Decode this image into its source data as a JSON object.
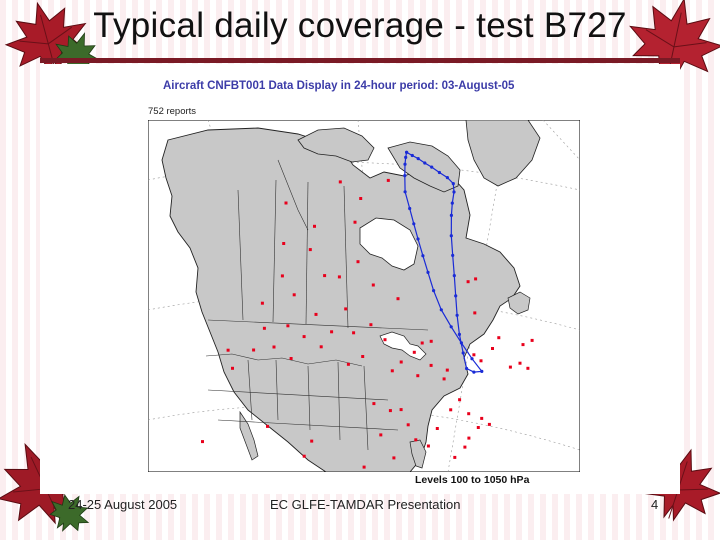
{
  "slide": {
    "title": "Typical daily coverage - test B727",
    "footer": {
      "date": "24-25 August 2005",
      "presentation": "EC GLFE-TAMDAR Presentation",
      "page_number": "4"
    }
  },
  "map": {
    "heading": "Aircraft  CNFBT001  Data Display in 24-hour period: 03-August-05",
    "report_count": "752 reports",
    "levels": "Levels 100 to 1050 hPa",
    "colors": {
      "land": "#c8c8c8",
      "water": "#ffffff",
      "boundary": "#222222",
      "report_marker": "#e8001c",
      "track": "#1a2bd6"
    },
    "flight_track": [
      [
        -74,
        76
      ],
      [
        -72,
        75.4
      ],
      [
        -70,
        74.8
      ],
      [
        -68,
        74.0
      ],
      [
        -66,
        73.2
      ],
      [
        -64,
        72.2
      ],
      [
        -62,
        71.2
      ],
      [
        -61,
        70.2
      ],
      [
        -62,
        69.2
      ],
      [
        -64,
        68.0
      ],
      [
        -65.8,
        66.6
      ],
      [
        -68,
        64.2
      ],
      [
        -69.5,
        61.8
      ],
      [
        -70.8,
        59.3
      ],
      [
        -72.0,
        56.8
      ],
      [
        -73.0,
        54.4
      ],
      [
        -73.7,
        52.0
      ],
      [
        -74.0,
        49.6
      ],
      [
        -74.2,
        47.6
      ],
      [
        -73.0,
        46.9
      ],
      [
        -71.5,
        46.7
      ],
      [
        -72.6,
        48.6
      ],
      [
        -73.8,
        50.9
      ],
      [
        -75.0,
        53.2
      ],
      [
        -76.2,
        55.6
      ],
      [
        -76.9,
        58.2
      ],
      [
        -77.2,
        60.6
      ],
      [
        -77.5,
        62.8
      ],
      [
        -77.8,
        65.0
      ],
      [
        -78,
        67.0
      ],
      [
        -78.2,
        69.0
      ],
      [
        -78.5,
        71.2
      ],
      [
        -77.2,
        73.2
      ],
      [
        -76,
        74.6
      ],
      [
        -75,
        75.4
      ],
      [
        -74,
        76
      ]
    ],
    "report_points": [
      [
        -84,
        73
      ],
      [
        -95,
        71
      ],
      [
        -103,
        73
      ],
      [
        -97,
        68
      ],
      [
        -110,
        67
      ],
      [
        -121,
        69
      ],
      [
        -118,
        64
      ],
      [
        -110,
        64
      ],
      [
        -105,
        61
      ],
      [
        -101,
        61
      ],
      [
        -96,
        63
      ],
      [
        -92,
        60
      ],
      [
        -112,
        58
      ],
      [
        -116,
        60
      ],
      [
        -119,
        56
      ],
      [
        -117,
        53
      ],
      [
        -112,
        54
      ],
      [
        -106,
        56
      ],
      [
        -102,
        54
      ],
      [
        -99,
        57
      ],
      [
        -93,
        55
      ],
      [
        -90,
        53
      ],
      [
        -86,
        58
      ],
      [
        -123,
        49
      ],
      [
        -121,
        47
      ],
      [
        -118,
        50
      ],
      [
        -114,
        51
      ],
      [
        -110,
        50
      ],
      [
        -108,
        53
      ],
      [
        -104,
        52
      ],
      [
        -98,
        50
      ],
      [
        -97,
        54
      ],
      [
        -95,
        51
      ],
      [
        -89,
        49
      ],
      [
        -87,
        50
      ],
      [
        -84,
        48
      ],
      [
        -81,
        49
      ],
      [
        -79,
        47
      ],
      [
        -80,
        52
      ],
      [
        -82,
        52
      ],
      [
        -84,
        51
      ],
      [
        -78,
        48
      ],
      [
        -72,
        49
      ],
      [
        -68,
        49
      ],
      [
        -66,
        46
      ],
      [
        -64,
        46
      ],
      [
        -63,
        45
      ],
      [
        -62,
        48
      ],
      [
        -60,
        48
      ],
      [
        -66,
        50
      ],
      [
        -71,
        48
      ],
      [
        -69,
        54
      ],
      [
        -66,
        58
      ],
      [
        -68,
        58
      ],
      [
        -77,
        44
      ],
      [
        -79,
        43
      ],
      [
        -76,
        42
      ],
      [
        -74,
        41
      ],
      [
        -73,
        40
      ],
      [
        -75,
        40
      ],
      [
        -77,
        39
      ],
      [
        -78,
        38
      ],
      [
        -80,
        37
      ],
      [
        -81,
        35
      ],
      [
        -83,
        34
      ],
      [
        -84,
        39
      ],
      [
        -86,
        40
      ],
      [
        -87,
        42
      ],
      [
        -88,
        44
      ],
      [
        -90,
        44
      ],
      [
        -93,
        45
      ],
      [
        -90,
        38
      ],
      [
        -92,
        35
      ],
      [
        -95,
        37
      ],
      [
        -97,
        36
      ],
      [
        -100,
        35
      ],
      [
        -104,
        40
      ],
      [
        -105,
        38
      ],
      [
        -112,
        41
      ],
      [
        -111,
        33
      ],
      [
        -118,
        34
      ],
      [
        -122,
        37
      ],
      [
        -95,
        30
      ],
      [
        -90,
        30
      ],
      [
        -84,
        30
      ],
      [
        -81,
        28
      ],
      [
        -80,
        26
      ],
      [
        -98,
        30
      ],
      [
        -92,
        41
      ],
      [
        -82,
        41
      ]
    ]
  }
}
